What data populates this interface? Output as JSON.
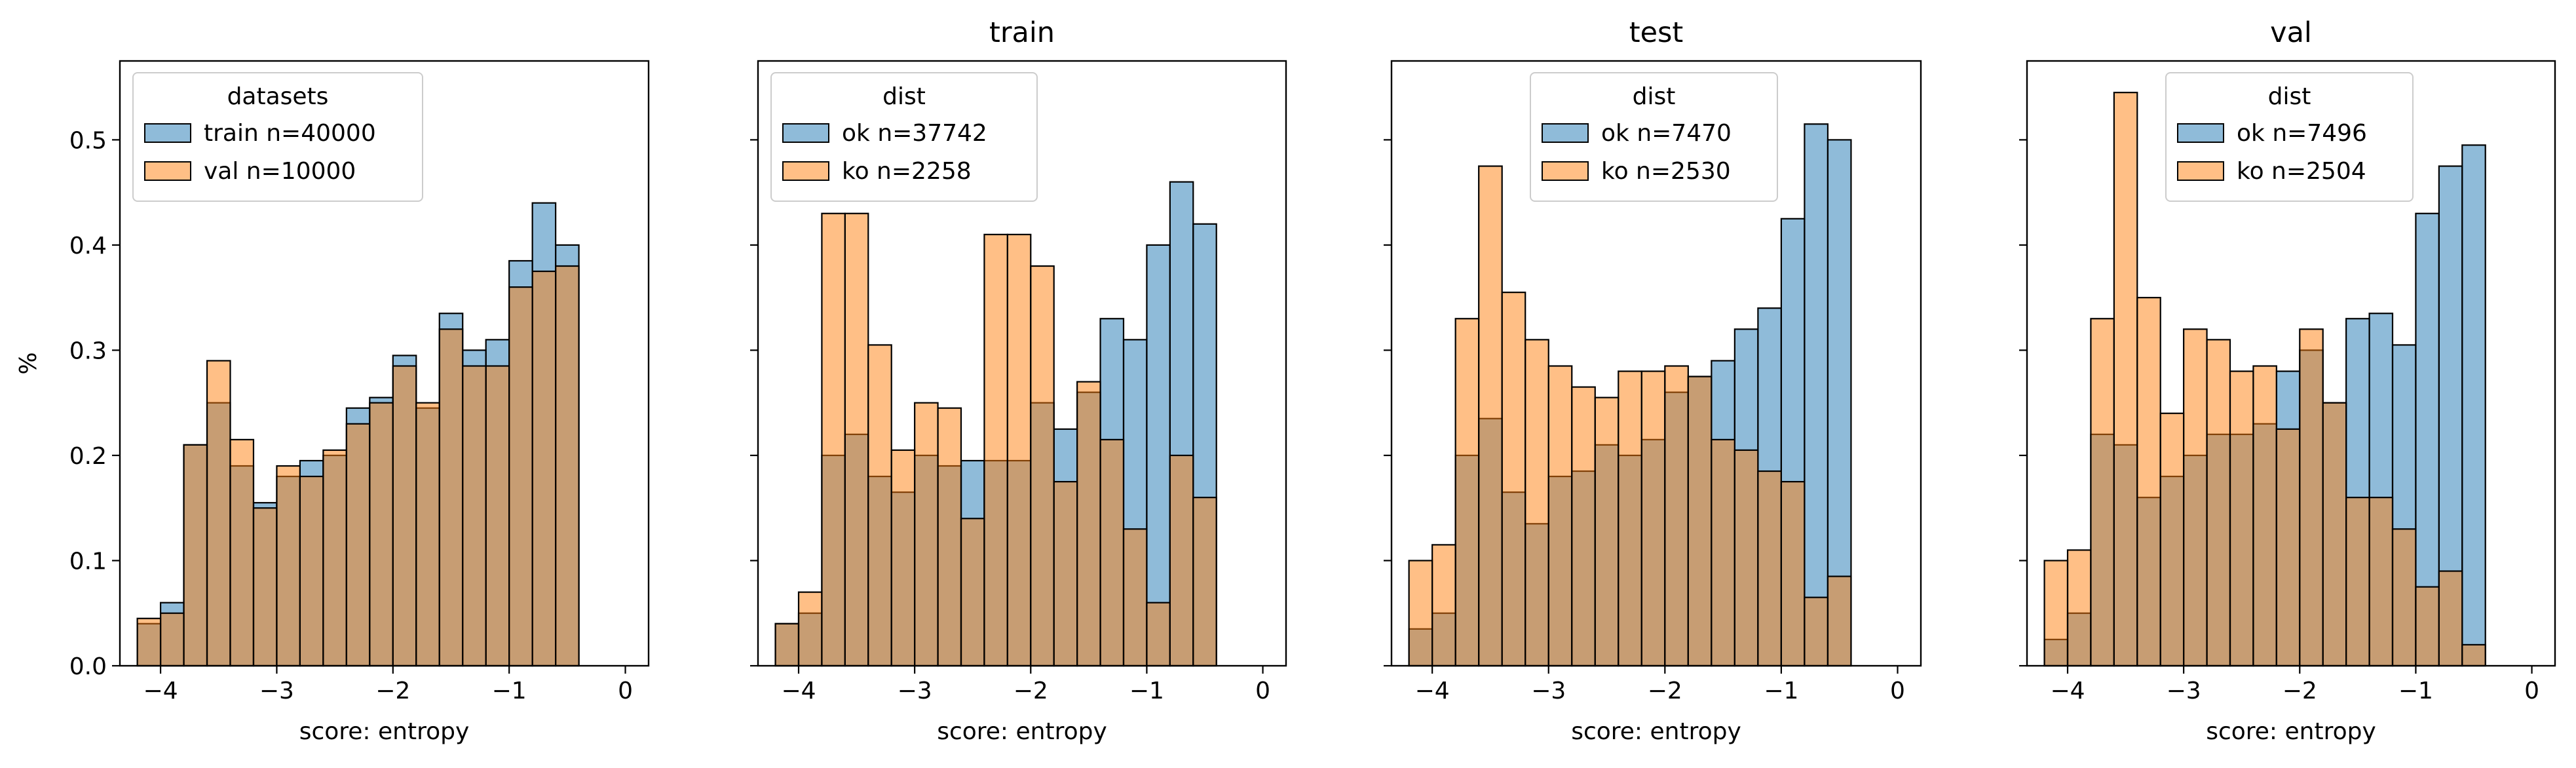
{
  "chart_data": [
    {
      "type": "bar",
      "title": "",
      "xlabel": "score: entropy",
      "ylabel": "%",
      "xlim": [
        -4.35,
        0.2
      ],
      "ylim": [
        0,
        0.575
      ],
      "xticks": [
        -4,
        -3,
        -2,
        -1,
        0
      ],
      "xtick_labels": [
        "−4",
        "−3",
        "−2",
        "−1",
        "0"
      ],
      "yticks": [
        0,
        0.1,
        0.2,
        0.3,
        0.4,
        0.5
      ],
      "ytick_labels": [
        "0.0",
        "0.1",
        "0.2",
        "0.3",
        "0.4",
        "0.5"
      ],
      "show_yticklabels": true,
      "bin_start": -4.2,
      "bin_width": 0.2,
      "legend": {
        "title": "datasets",
        "position": "upper-left"
      },
      "series": [
        {
          "name": "train n=40000",
          "color": "#1f77b4",
          "values": [
            0.04,
            0.06,
            0.21,
            0.25,
            0.19,
            0.155,
            0.18,
            0.195,
            0.2,
            0.245,
            0.255,
            0.295,
            0.245,
            0.335,
            0.3,
            0.31,
            0.385,
            0.44,
            0.4
          ]
        },
        {
          "name": "val n=10000",
          "color": "#ff7f0e",
          "values": [
            0.045,
            0.05,
            0.21,
            0.29,
            0.215,
            0.15,
            0.19,
            0.18,
            0.205,
            0.23,
            0.25,
            0.285,
            0.25,
            0.32,
            0.285,
            0.285,
            0.36,
            0.375,
            0.38
          ]
        }
      ]
    },
    {
      "type": "bar",
      "title": "train",
      "xlabel": "score: entropy",
      "ylabel": "",
      "xlim": [
        -4.35,
        0.2
      ],
      "ylim": [
        0,
        0.575
      ],
      "xticks": [
        -4,
        -3,
        -2,
        -1,
        0
      ],
      "xtick_labels": [
        "−4",
        "−3",
        "−2",
        "−1",
        "0"
      ],
      "yticks": [
        0,
        0.1,
        0.2,
        0.3,
        0.4,
        0.5
      ],
      "ytick_labels": [
        "0.0",
        "0.1",
        "0.2",
        "0.3",
        "0.4",
        "0.5"
      ],
      "show_yticklabels": false,
      "bin_start": -4.2,
      "bin_width": 0.2,
      "legend": {
        "title": "dist",
        "position": "upper-left"
      },
      "series": [
        {
          "name": "ok n=37742",
          "color": "#1f77b4",
          "values": [
            0.04,
            0.05,
            0.2,
            0.22,
            0.18,
            0.165,
            0.2,
            0.19,
            0.195,
            0.195,
            0.195,
            0.25,
            0.225,
            0.26,
            0.33,
            0.31,
            0.4,
            0.46,
            0.42
          ]
        },
        {
          "name": "ko n=2258",
          "color": "#ff7f0e",
          "values": [
            0.04,
            0.07,
            0.43,
            0.43,
            0.305,
            0.205,
            0.25,
            0.245,
            0.14,
            0.41,
            0.41,
            0.38,
            0.175,
            0.27,
            0.215,
            0.13,
            0.06,
            0.2,
            0.16
          ]
        }
      ]
    },
    {
      "type": "bar",
      "title": "test",
      "xlabel": "score: entropy",
      "ylabel": "",
      "xlim": [
        -4.35,
        0.2
      ],
      "ylim": [
        0,
        0.575
      ],
      "xticks": [
        -4,
        -3,
        -2,
        -1,
        0
      ],
      "xtick_labels": [
        "−4",
        "−3",
        "−2",
        "−1",
        "0"
      ],
      "yticks": [
        0,
        0.1,
        0.2,
        0.3,
        0.4,
        0.5
      ],
      "ytick_labels": [
        "0.0",
        "0.1",
        "0.2",
        "0.3",
        "0.4",
        "0.5"
      ],
      "show_yticklabels": false,
      "bin_start": -4.2,
      "bin_width": 0.2,
      "legend": {
        "title": "dist",
        "position": "upper-center"
      },
      "series": [
        {
          "name": "ok n=7470",
          "color": "#1f77b4",
          "values": [
            0.035,
            0.05,
            0.2,
            0.235,
            0.165,
            0.135,
            0.18,
            0.185,
            0.21,
            0.2,
            0.215,
            0.26,
            0.275,
            0.29,
            0.32,
            0.34,
            0.425,
            0.515,
            0.5
          ]
        },
        {
          "name": "ko n=2530",
          "color": "#ff7f0e",
          "values": [
            0.1,
            0.115,
            0.33,
            0.475,
            0.355,
            0.31,
            0.285,
            0.265,
            0.255,
            0.28,
            0.28,
            0.285,
            0.275,
            0.215,
            0.205,
            0.185,
            0.175,
            0.065,
            0.085
          ]
        }
      ]
    },
    {
      "type": "bar",
      "title": "val",
      "xlabel": "score: entropy",
      "ylabel": "",
      "xlim": [
        -4.35,
        0.2
      ],
      "ylim": [
        0,
        0.575
      ],
      "xticks": [
        -4,
        -3,
        -2,
        -1,
        0
      ],
      "xtick_labels": [
        "−4",
        "−3",
        "−2",
        "−1",
        "0"
      ],
      "yticks": [
        0,
        0.1,
        0.2,
        0.3,
        0.4,
        0.5
      ],
      "ytick_labels": [
        "0.0",
        "0.1",
        "0.2",
        "0.3",
        "0.4",
        "0.5"
      ],
      "show_yticklabels": false,
      "bin_start": -4.2,
      "bin_width": 0.2,
      "legend": {
        "title": "dist",
        "position": "upper-center"
      },
      "series": [
        {
          "name": "ok n=7496",
          "color": "#1f77b4",
          "values": [
            0.025,
            0.05,
            0.22,
            0.21,
            0.16,
            0.18,
            0.2,
            0.22,
            0.22,
            0.23,
            0.28,
            0.3,
            0.25,
            0.33,
            0.335,
            0.305,
            0.43,
            0.475,
            0.495
          ]
        },
        {
          "name": "ko n=2504",
          "color": "#ff7f0e",
          "values": [
            0.1,
            0.11,
            0.33,
            0.545,
            0.35,
            0.24,
            0.32,
            0.31,
            0.28,
            0.285,
            0.225,
            0.32,
            0.25,
            0.16,
            0.16,
            0.13,
            0.075,
            0.09,
            0.02
          ]
        }
      ]
    }
  ]
}
